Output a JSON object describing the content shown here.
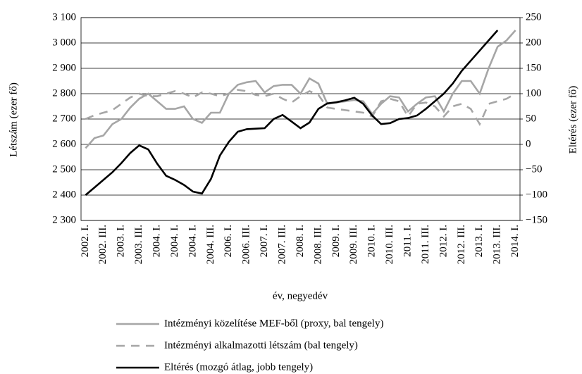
{
  "chart_data": {
    "type": "line",
    "xlabel": "év, negyedév",
    "ylabel": "Létszám (ezer fő)",
    "y2label": "Eltérés (ezer fő)",
    "categories": [
      "2002. I.",
      null,
      "2002. III.",
      null,
      "2003. I.",
      null,
      "2003. III.",
      null,
      "2004. I.",
      null,
      "2004. I.",
      null,
      "2004. I.",
      null,
      "2004. III.",
      null,
      "2006. I.",
      null,
      "2006. III.",
      null,
      "2007. I.",
      null,
      "2007. III.",
      null,
      "2008. I.",
      null,
      "2008. III.",
      null,
      "2009. I.",
      null,
      "2009. III.",
      null,
      "2010. I.",
      null,
      "2010. III.",
      null,
      "2011. I.",
      null,
      "2011. III.",
      null,
      "2012. I.",
      null,
      "2012. III.",
      null,
      "2013. I.",
      null,
      "2013. III.",
      null,
      "2014. I."
    ],
    "ylim": [
      2300,
      3100
    ],
    "yticks": [
      {
        "value": 2300,
        "label": "2 300"
      },
      {
        "value": 2400,
        "label": "2 400"
      },
      {
        "value": 2500,
        "label": "2 500"
      },
      {
        "value": 2600,
        "label": "2 600"
      },
      {
        "value": 2700,
        "label": "2 700"
      },
      {
        "value": 2800,
        "label": "2 800"
      },
      {
        "value": 2900,
        "label": "2 900"
      },
      {
        "value": 3000,
        "label": "3 000"
      },
      {
        "value": 3100,
        "label": "3 100"
      }
    ],
    "y2lim": [
      -150,
      250
    ],
    "y2ticks": [
      {
        "value": -150,
        "label": "−150"
      },
      {
        "value": -100,
        "label": "−100"
      },
      {
        "value": -50,
        "label": "−50"
      },
      0,
      50,
      100,
      150,
      200,
      250
    ],
    "grid": true,
    "legend": "bottom",
    "series": [
      {
        "name": "Intézményi közelítése MEF-ből (proxy, bal tengely)",
        "color": "#a6a6a6",
        "dash": "solid",
        "values": [
          2585,
          2625,
          2635,
          2680,
          2700,
          2745,
          2780,
          2800,
          2770,
          2740,
          2740,
          2750,
          2700,
          2685,
          2725,
          2725,
          2800,
          2835,
          2845,
          2850,
          2805,
          2830,
          2835,
          2835,
          2800,
          2860,
          2840,
          2760,
          2765,
          2770,
          2775,
          2770,
          2720,
          2760,
          2790,
          2785,
          2730,
          2760,
          2785,
          2790,
          2730,
          2800,
          2850,
          2850,
          2800,
          2900,
          2985,
          3010,
          3050
        ]
      },
      {
        "name": "Intézményi alkalmazotti létszám (bal tengely)",
        "color": "#a6a6a6",
        "dash": "dashed",
        "values": [
          2700,
          2715,
          2725,
          2735,
          2760,
          2785,
          2800,
          2790,
          2790,
          2800,
          2810,
          2800,
          2785,
          2805,
          2800,
          2790,
          2800,
          2815,
          2810,
          2795,
          2790,
          2800,
          2780,
          2765,
          2790,
          2810,
          2795,
          2745,
          2740,
          2735,
          2730,
          2725,
          2710,
          2770,
          2780,
          2770,
          2710,
          2760,
          2765,
          2750,
          2710,
          2750,
          2760,
          2740,
          2680,
          2760,
          2770,
          2780,
          2800
        ]
      },
      {
        "name": "Eltérés (mozgó átlag, jobb tengely)",
        "color": "#000000",
        "dash": "solid",
        "axis": "y2",
        "values": [
          -100,
          -85,
          -70,
          -55,
          -37,
          -17,
          -2,
          -10,
          -38,
          -62,
          -70,
          -80,
          -93,
          -97,
          -68,
          -22,
          5,
          25,
          30,
          31,
          32,
          50,
          58,
          45,
          32,
          43,
          70,
          81,
          83,
          87,
          92,
          80,
          57,
          40,
          42,
          50,
          52,
          57,
          70,
          85,
          100,
          120,
          145,
          165,
          185,
          205,
          225,
          null,
          null
        ]
      }
    ]
  }
}
